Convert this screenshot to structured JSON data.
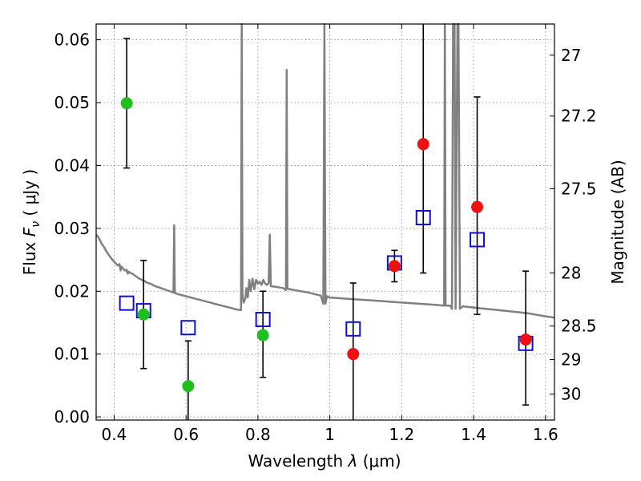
{
  "chart_data": {
    "type": "scatter",
    "title": "",
    "xlabel_pre": "Wavelength",
    "xlabel_sym": "λ",
    "xlabel_unit": "(μm)",
    "ylabel_pre": "Flux",
    "ylabel_sym": "F",
    "ylabel_sub": "ν",
    "ylabel_unit": "( μJy )",
    "y2label": "Magnitude (AB)",
    "xlim": [
      0.35,
      1.625
    ],
    "ylim": [
      -0.0005,
      0.0625
    ],
    "grid": true,
    "x_ticks": [
      {
        "v": 0.4,
        "label": "0.4"
      },
      {
        "v": 0.6,
        "label": "0.6"
      },
      {
        "v": 0.8,
        "label": "0.8"
      },
      {
        "v": 1.0,
        "label": "1"
      },
      {
        "v": 1.2,
        "label": "1.2"
      },
      {
        "v": 1.4,
        "label": "1.4"
      },
      {
        "v": 1.6,
        "label": "1.6"
      }
    ],
    "y_ticks": [
      {
        "v": 0.0,
        "label": "0.00"
      },
      {
        "v": 0.01,
        "label": "0.01"
      },
      {
        "v": 0.02,
        "label": "0.02"
      },
      {
        "v": 0.03,
        "label": "0.03"
      },
      {
        "v": 0.04,
        "label": "0.04"
      },
      {
        "v": 0.05,
        "label": "0.05"
      },
      {
        "v": 0.06,
        "label": "0.06"
      }
    ],
    "y2_ticks": [
      {
        "mag": 27,
        "label": "27"
      },
      {
        "mag": 27.2,
        "label": "27.2"
      },
      {
        "mag": 27.5,
        "label": "27.5"
      },
      {
        "mag": 28,
        "label": "28"
      },
      {
        "mag": 28.5,
        "label": "28.5"
      },
      {
        "mag": 29,
        "label": "29"
      },
      {
        "mag": 30,
        "label": "30"
      }
    ],
    "colors": {
      "spectrum": "#808080",
      "green": "#1fbf1f",
      "red": "#ee1111",
      "square": "#1010cc",
      "errorbar": "#000000",
      "grid": "#888888"
    },
    "series": [
      {
        "name": "green-points",
        "marker": "circle",
        "points": [
          {
            "x": 0.435,
            "y": 0.0499,
            "ylo": 0.0396,
            "yhi": 0.0602
          },
          {
            "x": 0.482,
            "y": 0.0163,
            "ylo": 0.0077,
            "yhi": 0.0249
          },
          {
            "x": 0.606,
            "y": 0.0049,
            "ylo": -0.0005,
            "yhi": 0.0121
          },
          {
            "x": 0.814,
            "y": 0.013,
            "ylo": 0.0063,
            "yhi": 0.02
          }
        ]
      },
      {
        "name": "red-points",
        "marker": "circle",
        "points": [
          {
            "x": 1.065,
            "y": 0.01,
            "ylo": -0.0005,
            "yhi": 0.0213
          },
          {
            "x": 1.18,
            "y": 0.024,
            "ylo": 0.0215,
            "yhi": 0.0265
          },
          {
            "x": 1.26,
            "y": 0.0434,
            "ylo": 0.0229,
            "yhi": 0.064
          },
          {
            "x": 1.41,
            "y": 0.0334,
            "ylo": 0.0163,
            "yhi": 0.0509
          },
          {
            "x": 1.545,
            "y": 0.0123,
            "ylo": 0.0019,
            "yhi": 0.0232
          }
        ]
      },
      {
        "name": "model-squares",
        "marker": "square",
        "points": [
          {
            "x": 0.435,
            "y": 0.0181
          },
          {
            "x": 0.482,
            "y": 0.0169
          },
          {
            "x": 0.606,
            "y": 0.0142
          },
          {
            "x": 0.814,
            "y": 0.0155
          },
          {
            "x": 1.065,
            "y": 0.014
          },
          {
            "x": 1.18,
            "y": 0.0245
          },
          {
            "x": 1.26,
            "y": 0.0317
          },
          {
            "x": 1.41,
            "y": 0.0282
          },
          {
            "x": 1.545,
            "y": 0.0117
          }
        ]
      }
    ],
    "spectrum": [
      [
        0.35,
        0.029
      ],
      [
        0.355,
        0.0287
      ],
      [
        0.36,
        0.0282
      ],
      [
        0.365,
        0.0276
      ],
      [
        0.37,
        0.0272
      ],
      [
        0.375,
        0.0267
      ],
      [
        0.38,
        0.0262
      ],
      [
        0.385,
        0.0258
      ],
      [
        0.39,
        0.0254
      ],
      [
        0.395,
        0.025
      ],
      [
        0.4,
        0.0247
      ],
      [
        0.405,
        0.0244
      ],
      [
        0.41,
        0.0241
      ],
      [
        0.415,
        0.0243
      ],
      [
        0.418,
        0.0233
      ],
      [
        0.421,
        0.0239
      ],
      [
        0.425,
        0.0236
      ],
      [
        0.43,
        0.0233
      ],
      [
        0.435,
        0.0234
      ],
      [
        0.438,
        0.0228
      ],
      [
        0.441,
        0.0231
      ],
      [
        0.445,
        0.0229
      ],
      [
        0.45,
        0.0228
      ],
      [
        0.455,
        0.0226
      ],
      [
        0.46,
        0.0224
      ],
      [
        0.465,
        0.0222
      ],
      [
        0.47,
        0.022
      ],
      [
        0.475,
        0.0219
      ],
      [
        0.48,
        0.0217
      ],
      [
        0.485,
        0.0216
      ],
      [
        0.49,
        0.0214
      ],
      [
        0.495,
        0.0213
      ],
      [
        0.5,
        0.0212
      ],
      [
        0.505,
        0.0211
      ],
      [
        0.51,
        0.0209
      ],
      [
        0.52,
        0.0207
      ],
      [
        0.53,
        0.0205
      ],
      [
        0.54,
        0.0203
      ],
      [
        0.55,
        0.0201
      ],
      [
        0.56,
        0.0199
      ],
      [
        0.565,
        0.0198
      ],
      [
        0.567,
        0.0305
      ],
      [
        0.569,
        0.0197
      ],
      [
        0.58,
        0.0195
      ],
      [
        0.6,
        0.0192
      ],
      [
        0.62,
        0.0189
      ],
      [
        0.64,
        0.0186
      ],
      [
        0.66,
        0.0183
      ],
      [
        0.68,
        0.018
      ],
      [
        0.7,
        0.0177
      ],
      [
        0.72,
        0.0174
      ],
      [
        0.74,
        0.0171
      ],
      [
        0.75,
        0.017
      ],
      [
        0.753,
        0.017
      ],
      [
        0.755,
        0.063
      ],
      [
        0.757,
        0.0195
      ],
      [
        0.76,
        0.0182
      ],
      [
        0.765,
        0.0188
      ],
      [
        0.768,
        0.0205
      ],
      [
        0.772,
        0.019
      ],
      [
        0.776,
        0.0218
      ],
      [
        0.78,
        0.02
      ],
      [
        0.785,
        0.022
      ],
      [
        0.79,
        0.0203
      ],
      [
        0.795,
        0.0218
      ],
      [
        0.8,
        0.0212
      ],
      [
        0.805,
        0.0215
      ],
      [
        0.81,
        0.021
      ],
      [
        0.815,
        0.0218
      ],
      [
        0.82,
        0.0212
      ],
      [
        0.825,
        0.021
      ],
      [
        0.83,
        0.0213
      ],
      [
        0.833,
        0.029
      ],
      [
        0.836,
        0.0208
      ],
      [
        0.85,
        0.0207
      ],
      [
        0.87,
        0.0205
      ],
      [
        0.878,
        0.0202
      ],
      [
        0.88,
        0.0552
      ],
      [
        0.882,
        0.0204
      ],
      [
        0.9,
        0.0202
      ],
      [
        0.92,
        0.02
      ],
      [
        0.94,
        0.0198
      ],
      [
        0.96,
        0.0195
      ],
      [
        0.975,
        0.0193
      ],
      [
        0.982,
        0.018
      ],
      [
        0.985,
        0.063
      ],
      [
        0.988,
        0.018
      ],
      [
        0.992,
        0.0192
      ],
      [
        1.0,
        0.019
      ],
      [
        1.05,
        0.0188
      ],
      [
        1.1,
        0.0186
      ],
      [
        1.15,
        0.0184
      ],
      [
        1.2,
        0.0182
      ],
      [
        1.25,
        0.018
      ],
      [
        1.3,
        0.0178
      ],
      [
        1.318,
        0.0177
      ],
      [
        1.32,
        0.063
      ],
      [
        1.322,
        0.0177
      ],
      [
        1.335,
        0.0177
      ],
      [
        1.34,
        0.0172
      ],
      [
        1.343,
        0.063
      ],
      [
        1.347,
        0.063
      ],
      [
        1.35,
        0.0172
      ],
      [
        1.355,
        0.063
      ],
      [
        1.358,
        0.063
      ],
      [
        1.362,
        0.0172
      ],
      [
        1.37,
        0.0176
      ],
      [
        1.4,
        0.0174
      ],
      [
        1.45,
        0.0171
      ],
      [
        1.5,
        0.0168
      ],
      [
        1.55,
        0.0165
      ],
      [
        1.6,
        0.016
      ],
      [
        1.625,
        0.0158
      ]
    ]
  }
}
